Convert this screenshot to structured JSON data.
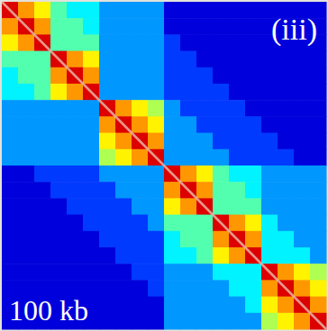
{
  "chart_data": {
    "type": "heatmap",
    "annotations": [
      "(iii)",
      "100 kb"
    ],
    "tick_labels": false,
    "color_range": [
      0,
      11
    ],
    "values": [
      [
        10,
        8,
        7,
        5,
        4,
        4,
        3,
        3,
        3,
        3,
        1,
        1,
        1,
        1,
        1,
        1,
        1,
        1,
        1,
        1
      ],
      [
        8,
        10,
        8,
        5,
        5,
        4,
        3,
        3,
        3,
        3,
        1,
        1,
        1,
        1,
        1,
        1,
        1,
        1,
        1,
        1
      ],
      [
        7,
        8,
        10,
        5,
        5,
        5,
        3,
        3,
        3,
        3,
        2,
        1,
        1,
        1,
        1,
        1,
        1,
        1,
        1,
        1
      ],
      [
        5,
        5,
        5,
        10,
        8,
        7,
        3,
        3,
        3,
        3,
        2,
        2,
        1,
        1,
        1,
        1,
        1,
        1,
        1,
        1
      ],
      [
        4,
        5,
        5,
        8,
        10,
        8,
        3,
        3,
        3,
        3,
        2,
        2,
        2,
        1,
        1,
        1,
        1,
        1,
        1,
        1
      ],
      [
        4,
        4,
        5,
        7,
        8,
        10,
        3,
        3,
        3,
        3,
        2,
        2,
        2,
        2,
        1,
        1,
        1,
        1,
        1,
        1
      ],
      [
        3,
        3,
        3,
        3,
        3,
        3,
        10,
        8,
        7,
        6,
        3,
        2,
        2,
        2,
        2,
        1,
        1,
        1,
        1,
        1
      ],
      [
        3,
        3,
        3,
        3,
        3,
        3,
        8,
        10,
        8,
        7,
        3,
        3,
        2,
        2,
        2,
        2,
        1,
        1,
        1,
        1
      ],
      [
        3,
        3,
        3,
        3,
        3,
        3,
        7,
        8,
        10,
        8,
        3,
        3,
        3,
        2,
        2,
        2,
        2,
        1,
        1,
        1
      ],
      [
        3,
        3,
        3,
        3,
        3,
        3,
        6,
        7,
        8,
        10,
        3,
        3,
        3,
        3,
        2,
        2,
        2,
        2,
        1,
        1
      ],
      [
        1,
        1,
        2,
        2,
        2,
        2,
        3,
        3,
        3,
        3,
        10,
        8,
        7,
        5,
        4,
        4,
        3,
        3,
        3,
        3
      ],
      [
        1,
        1,
        1,
        2,
        2,
        2,
        2,
        3,
        3,
        3,
        8,
        10,
        8,
        5,
        5,
        4,
        3,
        3,
        3,
        3
      ],
      [
        1,
        1,
        1,
        1,
        2,
        2,
        2,
        2,
        3,
        3,
        7,
        8,
        10,
        5,
        5,
        5,
        3,
        3,
        3,
        3
      ],
      [
        1,
        1,
        1,
        1,
        1,
        2,
        2,
        2,
        2,
        3,
        5,
        5,
        5,
        10,
        8,
        7,
        4,
        3,
        3,
        3
      ],
      [
        1,
        1,
        1,
        1,
        1,
        1,
        2,
        2,
        2,
        2,
        4,
        5,
        5,
        8,
        10,
        8,
        4,
        4,
        3,
        3
      ],
      [
        1,
        1,
        1,
        1,
        1,
        1,
        1,
        2,
        2,
        2,
        4,
        4,
        5,
        7,
        8,
        10,
        4,
        4,
        4,
        3
      ],
      [
        1,
        1,
        1,
        1,
        1,
        1,
        1,
        1,
        2,
        2,
        3,
        3,
        3,
        4,
        4,
        4,
        10,
        8,
        7,
        6
      ],
      [
        1,
        1,
        1,
        1,
        1,
        1,
        1,
        1,
        1,
        2,
        3,
        3,
        3,
        3,
        4,
        4,
        8,
        10,
        8,
        7
      ],
      [
        1,
        1,
        1,
        1,
        1,
        1,
        1,
        1,
        1,
        1,
        3,
        3,
        3,
        3,
        3,
        4,
        7,
        8,
        10,
        8
      ],
      [
        1,
        1,
        1,
        1,
        1,
        1,
        1,
        1,
        1,
        1,
        3,
        3,
        3,
        3,
        3,
        3,
        6,
        7,
        8,
        10
      ]
    ]
  }
}
